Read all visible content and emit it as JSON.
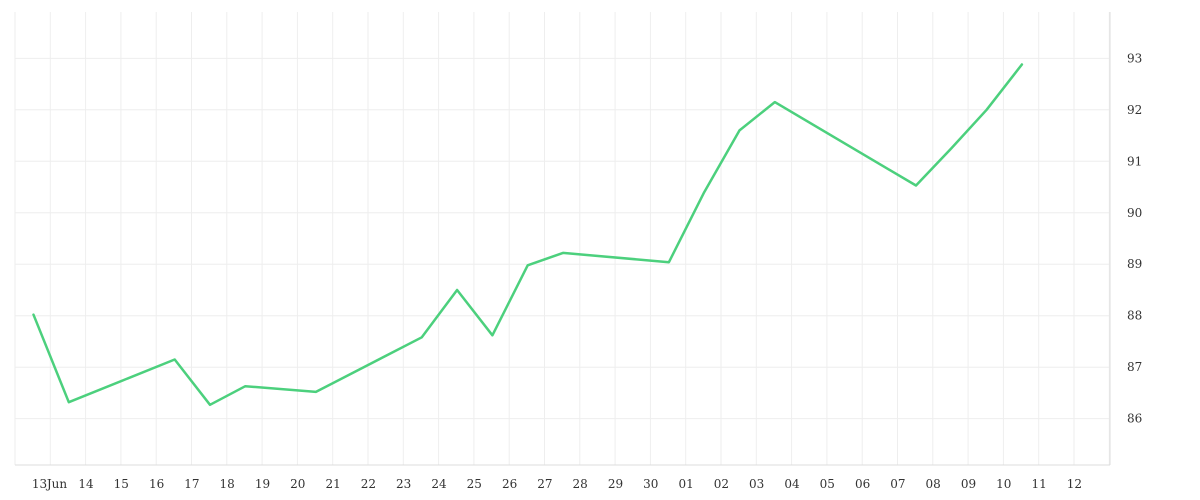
{
  "chart_data": {
    "type": "line",
    "x": [
      "Jun 12",
      "Jun 13",
      "Jun 16",
      "Jun 17",
      "Jun 18",
      "Jun 20",
      "Jun 23",
      "Jun 24",
      "Jun 25",
      "Jun 26",
      "Jun 27",
      "Jun 30",
      "Jul 01",
      "Jul 02",
      "Jul 03",
      "Jul 07",
      "Jul 08",
      "Jul 09",
      "Jul 10"
    ],
    "series": [
      {
        "values": [
          88.02,
          86.32,
          87.15,
          86.27,
          86.63,
          86.52,
          87.58,
          88.5,
          87.62,
          88.98,
          89.22,
          89.04,
          90.4,
          91.6,
          92.15,
          90.53,
          91.25,
          92.0,
          92.88
        ],
        "color": "#4cd07d"
      }
    ],
    "x_tick_labels": [
      "13",
      "Jun",
      "14",
      "15",
      "16",
      "17",
      "18",
      "19",
      "20",
      "21",
      "22",
      "23",
      "24",
      "25",
      "26",
      "27",
      "28",
      "29",
      "30",
      "01",
      "02",
      "03",
      "04",
      "05",
      "06",
      "07",
      "08",
      "09",
      "10",
      "11",
      "12"
    ],
    "y_ticks": [
      86,
      87,
      88,
      89,
      90,
      91,
      92,
      93
    ],
    "ylim": [
      85.1,
      93.9
    ],
    "y_axis_side": "right",
    "grid": true
  }
}
